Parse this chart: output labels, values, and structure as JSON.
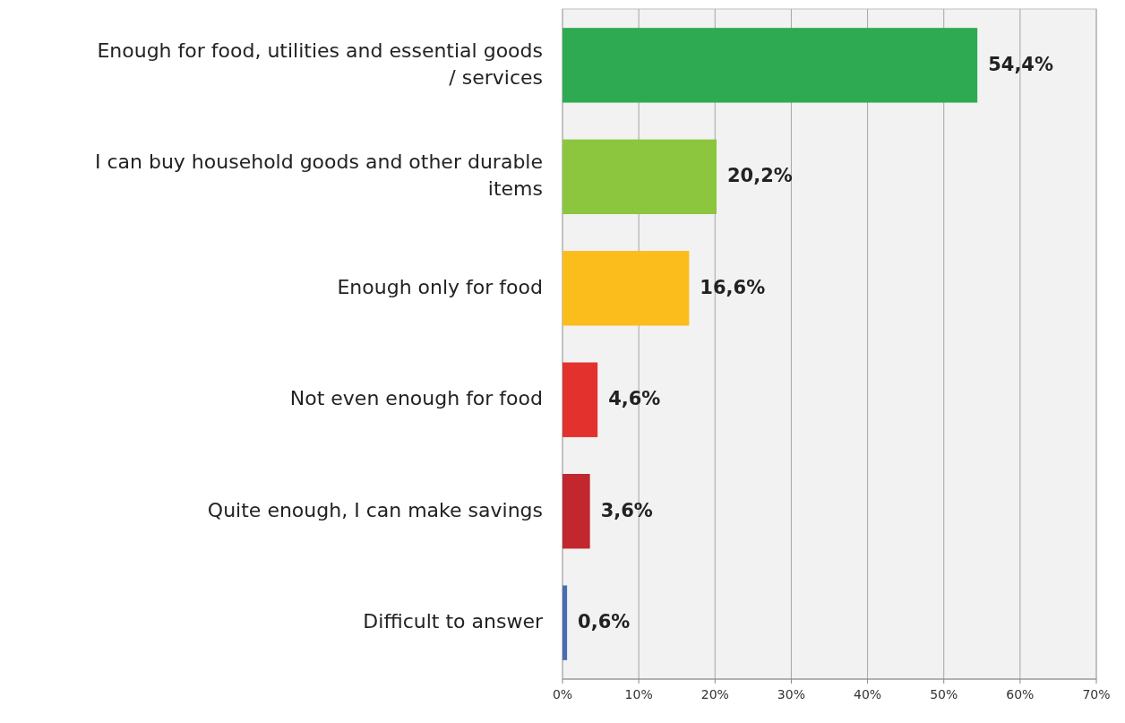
{
  "chart_data": {
    "type": "bar",
    "orientation": "horizontal",
    "categories": [
      "Enough for food, utilities and essential goods / services",
      "I can buy household goods and other durable items",
      "Enough only for food",
      "Not even enough for food",
      "Quite enough, I can make savings",
      "Difficult to answer"
    ],
    "values": [
      54.4,
      20.2,
      16.6,
      4.6,
      3.6,
      0.6
    ],
    "colors": [
      "#2eaa52",
      "#8cc63e",
      "#fbbd1c",
      "#e3312d",
      "#c1272d",
      "#4a6cb3"
    ],
    "value_labels": [
      "54,4%",
      "20,2%",
      "16,6%",
      "4,6%",
      "3,6%",
      "0,6%"
    ],
    "xlim": [
      0,
      70
    ],
    "xticks": [
      {
        "value": 0,
        "label": "0%"
      },
      {
        "value": 10,
        "label": "10%"
      },
      {
        "value": 20,
        "label": "20%"
      },
      {
        "value": 30,
        "label": "30%"
      },
      {
        "value": 40,
        "label": "40%"
      },
      {
        "value": 50,
        "label": "50%"
      },
      {
        "value": 60,
        "label": "60%"
      },
      {
        "value": 70,
        "label": "70%"
      }
    ],
    "grid": "x"
  }
}
